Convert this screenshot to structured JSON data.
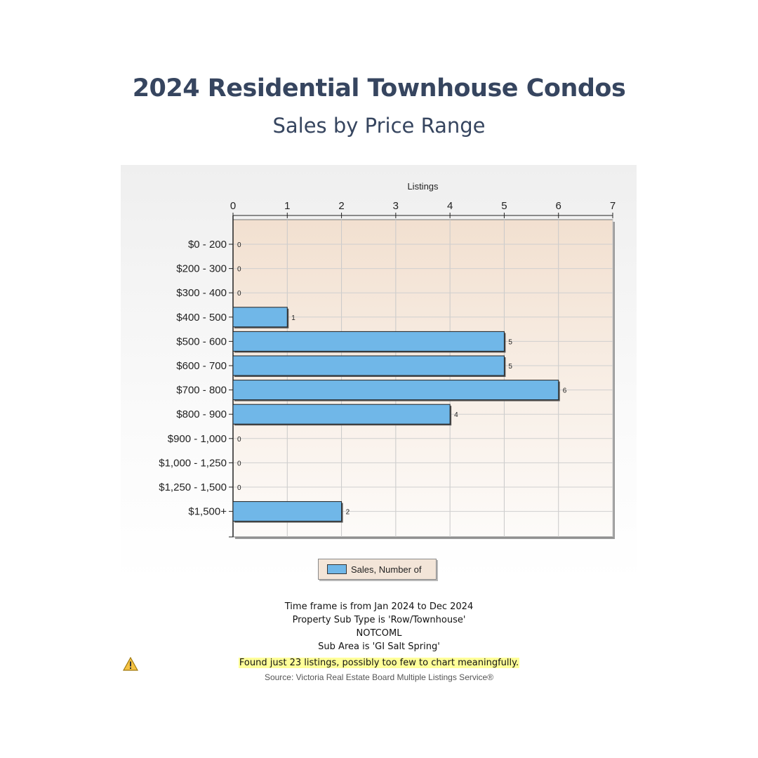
{
  "header": {
    "title": "2024 Residential Townhouse Condos",
    "subtitle": "Sales by Price Range"
  },
  "chart_data": {
    "type": "bar",
    "orientation": "horizontal",
    "title": "",
    "xlabel": "Listings",
    "ylabel": "",
    "xlim": [
      0,
      7
    ],
    "x_ticks": [
      0,
      1,
      2,
      3,
      4,
      5,
      6,
      7
    ],
    "grid": true,
    "legend_position": "bottom-center",
    "categories": [
      "$0 - 200",
      "$200 - 300",
      "$300 - 400",
      "$400 - 500",
      "$500 - 600",
      "$600 - 700",
      "$700 - 800",
      "$800 - 900",
      "$900 - 1,000",
      "$1,000 - 1,250",
      "$1,250 - 1,500",
      "$1,500+"
    ],
    "series": [
      {
        "name": "Sales, Number of",
        "color": "#70b7e8",
        "values": [
          0,
          0,
          0,
          1,
          5,
          5,
          6,
          4,
          0,
          0,
          0,
          2
        ]
      }
    ]
  },
  "legend": {
    "label": "Sales, Number of"
  },
  "notes": {
    "timeframe": "Time frame is from Jan 2024 to Dec 2024",
    "property_type": "Property Sub Type is 'Row/Townhouse'",
    "code": "NOTCOML",
    "sub_area": "Sub Area is 'GI Salt Spring'",
    "warning": "Found just 23 listings, possibly too few to chart meaningfully.",
    "warning_icon": "warning-triangle-icon"
  },
  "footer": {
    "source": "Source: Victoria Real Estate Board Multiple Listings Service®"
  }
}
